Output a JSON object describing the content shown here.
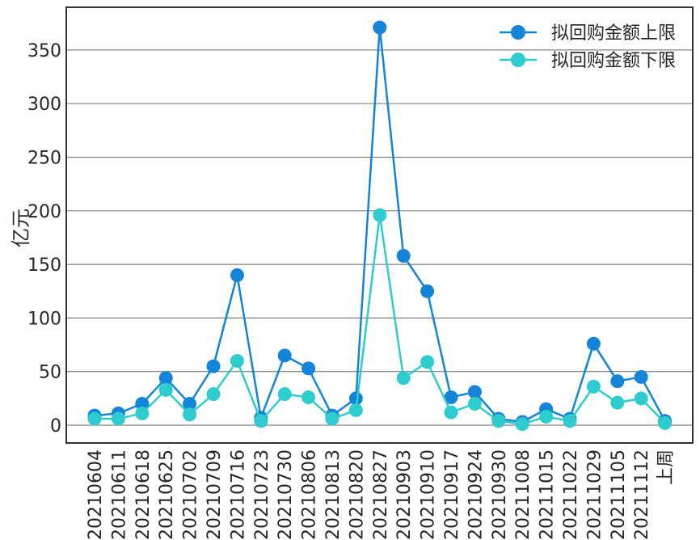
{
  "chart_data": {
    "type": "line",
    "title": "",
    "xlabel": "",
    "ylabel": "亿元",
    "ylim": [
      -15,
      390
    ],
    "yticks": [
      0,
      50,
      100,
      150,
      200,
      250,
      300,
      350
    ],
    "grid": {
      "y": true,
      "x": false
    },
    "legend_position": "upper right",
    "categories": [
      "20210604",
      "20210611",
      "20210618",
      "20210625",
      "20210702",
      "20210709",
      "20210716",
      "20210723",
      "20210730",
      "20210806",
      "20210813",
      "20210820",
      "20210827",
      "20210903",
      "20210910",
      "20210917",
      "20210924",
      "20210930",
      "20211008",
      "20211015",
      "20211022",
      "20211029",
      "20211105",
      "20211112",
      "上周"
    ],
    "series": [
      {
        "name": "拟回购金额上限",
        "color": "#1484d8",
        "values": [
          9,
          11,
          20,
          44,
          20,
          55,
          140,
          7,
          65,
          53,
          9,
          25,
          371,
          158,
          125,
          26,
          31,
          6,
          3,
          15,
          6,
          76,
          41,
          45,
          4
        ]
      },
      {
        "name": "拟回购金额下限",
        "color": "#2ecbcf",
        "values": [
          6,
          6,
          11,
          33,
          10,
          29,
          60,
          4,
          29,
          26,
          6,
          14,
          196,
          44,
          59,
          12,
          20,
          4,
          1,
          8,
          4,
          36,
          21,
          25,
          2
        ]
      }
    ]
  },
  "colors": {
    "axis": "#333333",
    "grid": "#808080"
  }
}
